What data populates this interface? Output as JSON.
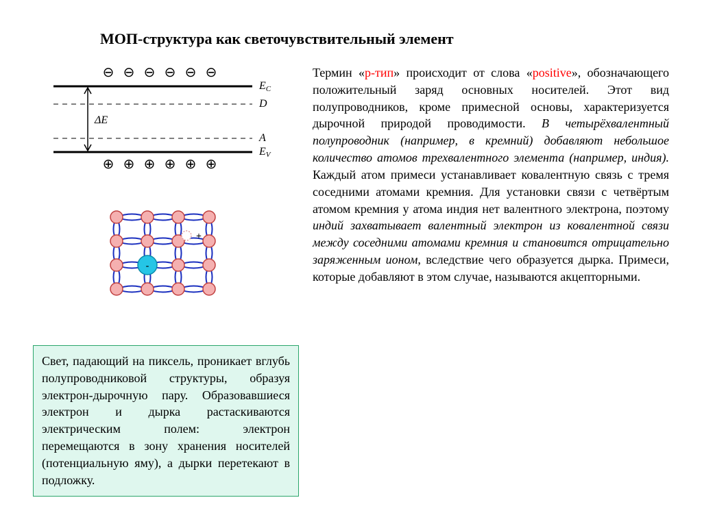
{
  "title": "МОП-структура как светочувствительный элемент",
  "band_diagram": {
    "labels": {
      "Ec": "E",
      "EcSub": "C",
      "D": "D",
      "dE": "ΔE",
      "A": "A",
      "Ev": "E",
      "EvSub": "V"
    },
    "minus": "⊖",
    "plus": "⊕",
    "line_color": "#000000"
  },
  "lattice": {
    "atom_fill": "#f5b0b0",
    "atom_stroke": "#c04040",
    "atom_r": 9,
    "impurity_fill": "#25c5e6",
    "impurity_stroke": "#0b8aa8",
    "bond_color": "#1a2fbf",
    "bond_width": 2,
    "hole_stroke": "#e0a0a0",
    "plus_label": "+",
    "minus_label": "-"
  },
  "lightbox": {
    "bg": "#dff7ee",
    "border": "#2aa56b",
    "text": "Свет, падающий на пиксель, проникает вглубь полупроводниковой структуры, образуя электрон-дырочную пару. Образовавшиеся электрон и дырка растаскиваются электрическим полем: электрон перемещаются в зону хранения носителей (потенциальную яму), а дырки перетекают в подложку."
  },
  "para": {
    "t1": "Термин «",
    "red1": "p-тип",
    "t2": "» происходит от слова «",
    "red2": "positive",
    "t3": "», обозначающего положительный заряд основных носителей. Этот вид полупроводников, кроме примесной основы, характеризуется дырочной природой проводимости. ",
    "em1": "В четырёхвалентный полупроводник (например, в кремний) добавляют небольшое количество атомов трехвалентного элемента (например, индия).",
    "t4": " Каждый атом примеси устанавливает ковалентную связь с тремя соседними атомами кремния. Для установки связи с четвёртым атомом кремния у атома индия нет валентного электрона, поэтому ",
    "em2": "индий захватывает валентный электрон из ковалентной связи между соседними атомами кремния и становится отрицательно заряженным ионом",
    "t5": ", вследствие чего образуется дырка. Примеси, которые добавляют в этом случае, называются акцепторными."
  }
}
